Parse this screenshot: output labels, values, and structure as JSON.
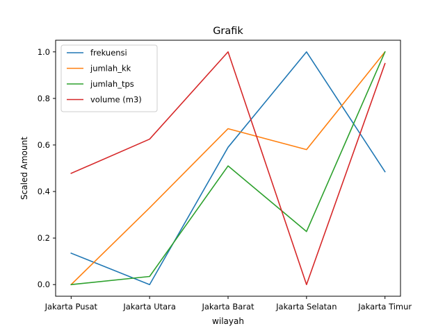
{
  "chart_data": {
    "type": "line",
    "title": "Grafik",
    "xlabel": "wilayah",
    "ylabel": "Scaled Amount",
    "categories": [
      "Jakarta Pusat",
      "Jakarta Utara",
      "Jakarta Barat",
      "Jakarta Selatan",
      "Jakarta Timur"
    ],
    "ylim": [
      -0.05,
      1.05
    ],
    "yticks": [
      0.0,
      0.2,
      0.4,
      0.6,
      0.8,
      1.0
    ],
    "ytick_labels": [
      "0.0",
      "0.2",
      "0.4",
      "0.6",
      "0.8",
      "1.0"
    ],
    "grid": false,
    "legend_position": "top-left",
    "series": [
      {
        "name": "frekuensi",
        "color": "#1f77b4",
        "values": [
          0.135,
          0.0,
          0.59,
          1.0,
          0.485
        ]
      },
      {
        "name": "jumlah_kk",
        "color": "#ff7f0e",
        "values": [
          0.0,
          0.33,
          0.67,
          0.58,
          1.0
        ]
      },
      {
        "name": "jumlah_tps",
        "color": "#2ca02c",
        "values": [
          0.0,
          0.035,
          0.51,
          0.228,
          1.0
        ]
      },
      {
        "name": "volume (m3)",
        "color": "#d62728",
        "values": [
          0.478,
          0.625,
          1.0,
          0.0,
          0.95
        ]
      }
    ]
  }
}
